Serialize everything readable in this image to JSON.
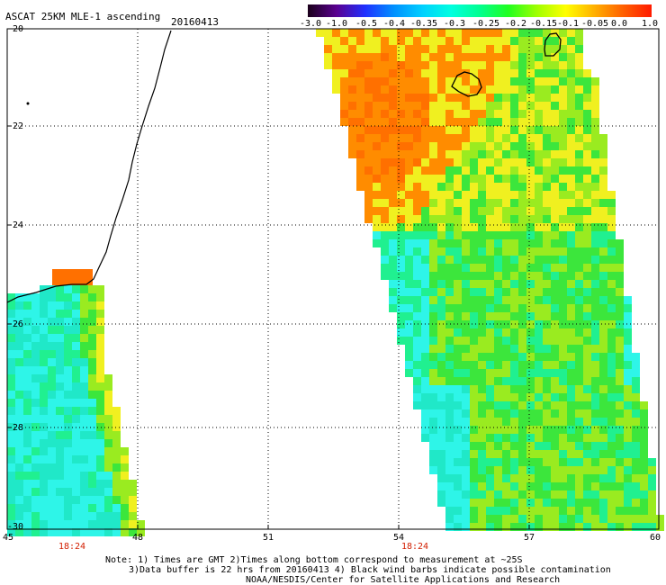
{
  "header": {
    "title": "ASCAT 25KM MLE-1 ascending",
    "date": "20160413"
  },
  "colorbar": {
    "labels": [
      "-3.0",
      "-1.0",
      "-0.5",
      "-0.4",
      "-0.35",
      "-0.3",
      "-0.25",
      "-0.2",
      "-0.15",
      "-0.1",
      "-0.05",
      "0.0",
      "1.0"
    ],
    "colors": [
      "#1a001a",
      "#5a0090",
      "#2030ff",
      "#0090ff",
      "#00d0ff",
      "#00ffe0",
      "#00ff90",
      "#20ff20",
      "#a0ff00",
      "#ffff00",
      "#ffb000",
      "#ff6000",
      "#ff1a00"
    ]
  },
  "axes": {
    "y_labels": [
      "-20",
      "-22",
      "-24",
      "-26",
      "-28",
      "-30"
    ],
    "x_labels": [
      "45",
      "48",
      "51",
      "54",
      "57",
      "60"
    ],
    "time_labels": [
      "18:24",
      "18:24"
    ]
  },
  "notes": [
    "Note: 1) Times are GMT 2)Times along bottom correspond to measurement at ~25S",
    "3)Data buffer is 22 hrs from 20160413 4) Black wind barbs indicate possible contamination",
    "NOAA/NESDIS/Center for Satellite Applications and Research"
  ],
  "palette": {
    "cyan": "#2ef5e8",
    "teal": "#20e8c8",
    "green_cyan": "#20f090",
    "green": "#3ce63c",
    "yellow_green": "#9aeb20",
    "yellow": "#f0f020",
    "orange": "#ff8c00",
    "dark_orange": "#ff7000"
  }
}
